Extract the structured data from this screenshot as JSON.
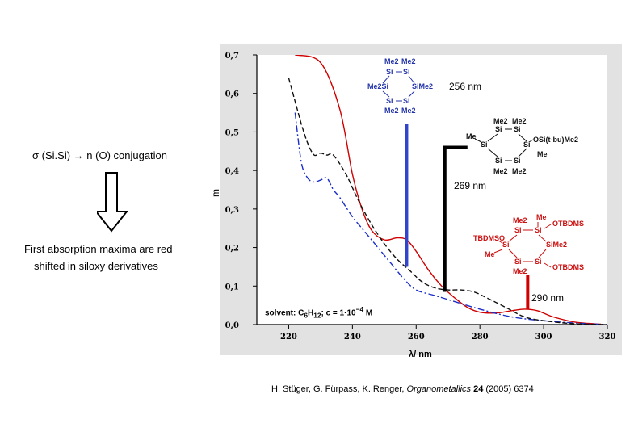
{
  "left_panel": {
    "sigma_symbol": "σ",
    "conjugation_text": "(Si.Si)",
    "arrow_glyph": "→",
    "conjugation_target": "n (O) conjugation",
    "statement_line1": "First absorption maxima are red",
    "statement_line2": "shifted  in siloxy derivatives"
  },
  "citation": {
    "authors": "H. Stüger, G. Fürpass, K. Renger, ",
    "journal": "Organometallics",
    "volume": "24",
    "year_pages": " (2005) 6374"
  },
  "molecules": {
    "m1": {
      "top": [
        "Me2",
        "Me2"
      ],
      "si_row1": [
        "Si",
        "Si"
      ],
      "left": "Me2Si",
      "right": "SiMe2",
      "si_row3": [
        "Si",
        "Si"
      ],
      "bottom": [
        "Me2",
        "Me2"
      ]
    },
    "m2": {
      "top": [
        "Me2",
        "Me2"
      ],
      "left_me": "Me",
      "right_sub": "OSi(t-bu)Me2",
      "right_me": "Me",
      "si_labels": [
        "Si",
        "Si",
        "Si",
        "Si",
        "Si",
        "Si"
      ],
      "bottom": [
        "Me2",
        "Me2"
      ]
    },
    "m3": {
      "top_me2": "Me2",
      "top_me": "Me",
      "top_right": "OTBDMS",
      "left": "TBDMSO",
      "right": "SiMe2",
      "left_me": "Me",
      "bottom_right": "OTBDMS",
      "bottom": "Me2",
      "si_labels": [
        "Si",
        "Si",
        "Si",
        "Si",
        "Si"
      ]
    }
  },
  "chart_data": {
    "type": "line",
    "title": "",
    "xlabel": "λ/ nm",
    "ylabel": "",
    "xlim": [
      210,
      320
    ],
    "ylim": [
      0.0,
      0.7
    ],
    "x_ticks": [
      220,
      240,
      260,
      280,
      300,
      320
    ],
    "y_ticks": [
      "0,0",
      "0,1",
      "0,2",
      "0,3",
      "0,4",
      "0,5",
      "0,6",
      "0,7"
    ],
    "side_label": "m",
    "solvent_label": "solvent: C6H12; c = 1·10⁻⁴ M",
    "solvent_parts": {
      "prefix": "solvent: C",
      "sub1": "6",
      "mid": "H",
      "sub2": "12",
      "suffix": "; c = 1·10",
      "sup": "−4",
      "end": " M"
    },
    "series": [
      {
        "name": "red",
        "color": "#d00000",
        "style": "solid",
        "x": [
          222,
          230,
          236,
          240,
          243,
          246,
          250,
          254,
          257,
          260,
          264,
          268,
          272,
          276,
          280,
          285,
          290,
          294,
          298,
          303,
          310,
          318
        ],
        "y": [
          0.7,
          0.68,
          0.56,
          0.39,
          0.3,
          0.245,
          0.22,
          0.225,
          0.22,
          0.19,
          0.14,
          0.1,
          0.07,
          0.045,
          0.032,
          0.03,
          0.036,
          0.04,
          0.036,
          0.02,
          0.006,
          0.001
        ]
      },
      {
        "name": "blue",
        "color": "#1a2ec8",
        "style": "dashdot",
        "x": [
          222,
          224,
          226,
          228,
          230,
          232,
          234,
          236,
          240,
          244,
          248,
          252,
          256,
          260,
          266,
          272,
          280,
          290,
          300,
          310,
          320
        ],
        "y": [
          0.55,
          0.42,
          0.38,
          0.37,
          0.375,
          0.38,
          0.35,
          0.33,
          0.28,
          0.24,
          0.2,
          0.16,
          0.12,
          0.09,
          0.075,
          0.06,
          0.04,
          0.02,
          0.01,
          0.004,
          0.0
        ]
      },
      {
        "name": "black",
        "color": "#111111",
        "style": "dashed",
        "x": [
          220,
          222,
          224,
          226,
          228,
          230,
          232,
          234,
          238,
          242,
          246,
          250,
          254,
          258,
          262,
          266,
          270,
          274,
          278,
          282,
          288,
          294,
          300,
          310,
          320
        ],
        "y": [
          0.64,
          0.58,
          0.52,
          0.47,
          0.44,
          0.445,
          0.44,
          0.44,
          0.39,
          0.32,
          0.26,
          0.21,
          0.17,
          0.14,
          0.11,
          0.095,
          0.09,
          0.09,
          0.085,
          0.07,
          0.045,
          0.02,
          0.01,
          0.002,
          0.0
        ]
      }
    ],
    "markers": [
      {
        "label": "256 nm",
        "x": 257,
        "color": "#3344cc",
        "y_from": 0.15,
        "y_to": 0.52
      },
      {
        "label": "269 nm",
        "x": 269,
        "color": "#000000",
        "y_from": 0.085,
        "y_to": 0.46
      },
      {
        "label": "290 nm",
        "x": 295,
        "color": "#d00000",
        "y_from": 0.04,
        "y_to": 0.13
      }
    ]
  }
}
